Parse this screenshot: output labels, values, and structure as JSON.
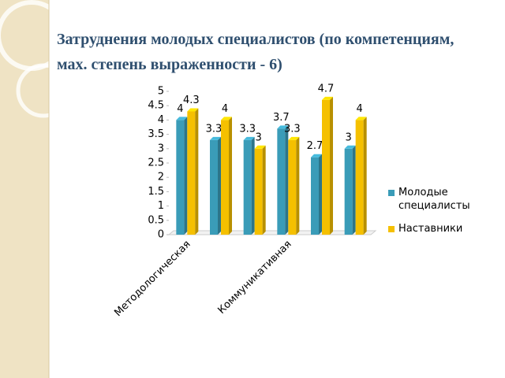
{
  "chart_data": {
    "type": "bar",
    "title": "Затруднения молодых специалистов (по компетенциям, мах. степень выраженности - 6)",
    "categories": [
      "Методологическая",
      null,
      null,
      "Коммуникативная",
      null,
      null
    ],
    "series": [
      {
        "name": "Молодые специалисты",
        "color": "#3a9cb8",
        "values": [
          4,
          3.3,
          3.3,
          3.7,
          2.7,
          3
        ]
      },
      {
        "name": "Наставники",
        "color": "#f5c000",
        "values": [
          4.3,
          4,
          3,
          3.3,
          4.7,
          4
        ]
      }
    ],
    "ylim": [
      0,
      5
    ],
    "yticks": [
      0,
      0.5,
      1,
      1.5,
      2,
      2.5,
      3,
      3.5,
      4,
      4.5,
      5
    ],
    "legend": "right"
  }
}
